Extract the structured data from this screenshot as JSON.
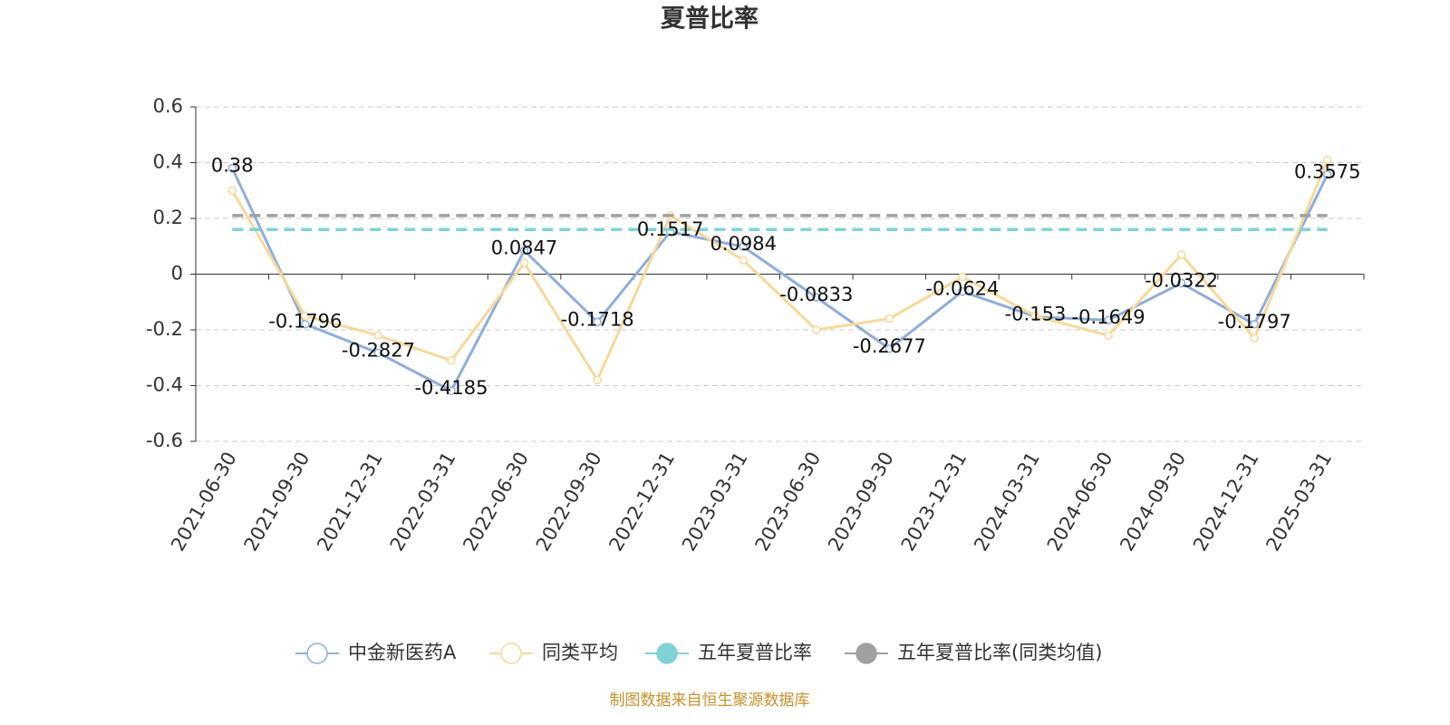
{
  "chart_data": {
    "type": "line",
    "title": "夏普比率",
    "categories": [
      "2021-06-30",
      "2021-09-30",
      "2021-12-31",
      "2022-03-31",
      "2022-06-30",
      "2022-09-30",
      "2022-12-31",
      "2023-03-31",
      "2023-06-30",
      "2023-09-30",
      "2023-12-31",
      "2024-03-31",
      "2024-06-30",
      "2024-09-30",
      "2024-12-31",
      "2025-03-31"
    ],
    "series": [
      {
        "name": "中金新医药A",
        "color": "#8eaedb",
        "values": [
          0.38,
          -0.1796,
          -0.2827,
          -0.4185,
          0.0847,
          -0.1718,
          0.1517,
          0.0984,
          -0.0833,
          -0.2677,
          -0.0624,
          -0.153,
          -0.1649,
          -0.0322,
          -0.1797,
          0.3575
        ],
        "show_labels": true
      },
      {
        "name": "同类平均",
        "color": "#f8d89a",
        "values": [
          0.3,
          -0.15,
          -0.22,
          -0.31,
          0.04,
          -0.38,
          0.21,
          0.05,
          -0.2,
          -0.16,
          -0.01,
          -0.15,
          -0.22,
          0.07,
          -0.23,
          0.41
        ]
      },
      {
        "name": "五年夏普比率",
        "color": "#7fd3d6",
        "value": 0.16
      },
      {
        "name": "五年夏普比率(同类均值)",
        "color": "#a0a0a0",
        "value": 0.21
      }
    ],
    "ylim": [
      -0.6,
      0.6
    ],
    "yticks": [
      -0.6,
      -0.4,
      -0.2,
      0,
      0.2,
      0.4,
      0.6
    ],
    "grid": true,
    "source": "制图数据来自恒生聚源数据库"
  }
}
